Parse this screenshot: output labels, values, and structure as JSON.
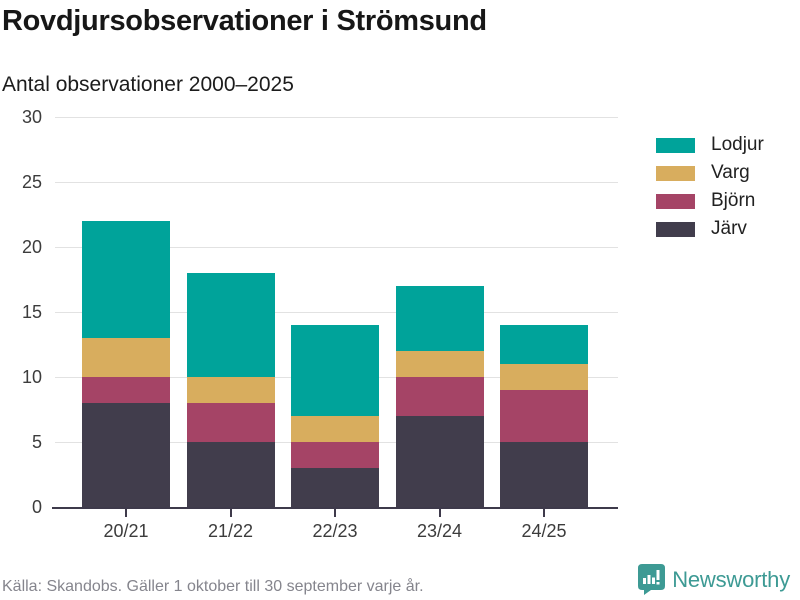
{
  "header": {
    "title": "Rovdjursobservationer i Strömsund",
    "subtitle": "Antal observationer 2000–2025"
  },
  "chart_data": {
    "type": "bar",
    "variant": "stacked",
    "title": "Rovdjursobservationer i Strömsund",
    "subtitle": "Antal observationer 2000–2025",
    "categories": [
      "20/21",
      "21/22",
      "22/23",
      "23/24",
      "24/25"
    ],
    "series": [
      {
        "name": "Järv",
        "color": "#413d4c",
        "values": [
          8,
          5,
          3,
          7,
          5
        ]
      },
      {
        "name": "Björn",
        "color": "#a54466",
        "values": [
          2,
          3,
          2,
          3,
          4
        ]
      },
      {
        "name": "Varg",
        "color": "#d8ad5e",
        "values": [
          3,
          2,
          2,
          2,
          2
        ]
      },
      {
        "name": "Lodjur",
        "color": "#00a39a",
        "values": [
          9,
          8,
          7,
          5,
          3
        ]
      }
    ],
    "stack_order": "bottom_to_top",
    "totals": [
      22,
      18,
      14,
      17,
      14
    ],
    "xlabel": "",
    "ylabel": "",
    "ylim": [
      0,
      30
    ],
    "yticks": [
      0,
      5,
      10,
      15,
      20,
      25,
      30
    ],
    "grid": true,
    "legend_position": "right",
    "legend_order_top_to_bottom": [
      "Lodjur",
      "Varg",
      "Björn",
      "Järv"
    ]
  },
  "footer": {
    "source": "Källa: Skandobs. Gäller 1 oktober till 30 september varje år.",
    "brand": "Newsworthy",
    "brand_color": "#3d9a94"
  }
}
